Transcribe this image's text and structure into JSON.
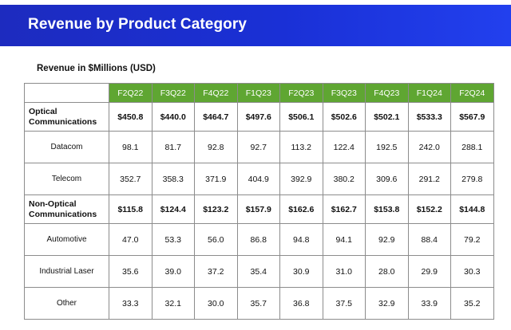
{
  "header": {
    "top_text": "",
    "title": "Revenue by Product Category"
  },
  "subtitle": "Revenue in $Millions (USD)",
  "columns": [
    "F2Q22",
    "F3Q22",
    "F4Q22",
    "F1Q23",
    "F2Q23",
    "F3Q23",
    "F4Q23",
    "F1Q24",
    "F2Q24"
  ],
  "rows": [
    {
      "label_line1": "Optical",
      "label_line2": "Communications",
      "values": [
        "$450.8",
        "$440.0",
        "$464.7",
        "$497.6",
        "$506.1",
        "$502.6",
        "$502.1",
        "$533.3",
        "$567.9"
      ]
    },
    {
      "label": "Datacom",
      "values": [
        "98.1",
        "81.7",
        "92.8",
        "92.7",
        "113.2",
        "122.4",
        "192.5",
        "242.0",
        "288.1"
      ]
    },
    {
      "label": "Telecom",
      "values": [
        "352.7",
        "358.3",
        "371.9",
        "404.9",
        "392.9",
        "380.2",
        "309.6",
        "291.2",
        "279.8"
      ]
    },
    {
      "label_line1": "Non-Optical",
      "label_line2": "Communications",
      "values": [
        "$115.8",
        "$124.4",
        "$123.2",
        "$157.9",
        "$162.6",
        "$162.7",
        "$153.8",
        "$152.2",
        "$144.8"
      ]
    },
    {
      "label": "Automotive",
      "values": [
        "47.0",
        "53.3",
        "56.0",
        "86.8",
        "94.8",
        "94.1",
        "92.9",
        "88.4",
        "79.2"
      ]
    },
    {
      "label": "Industrial Laser",
      "values": [
        "35.6",
        "39.0",
        "37.2",
        "35.4",
        "30.9",
        "31.0",
        "28.0",
        "29.9",
        "30.3"
      ]
    },
    {
      "label": "Other",
      "values": [
        "33.3",
        "32.1",
        "30.0",
        "35.7",
        "36.8",
        "37.5",
        "32.9",
        "33.9",
        "35.2"
      ]
    }
  ]
}
